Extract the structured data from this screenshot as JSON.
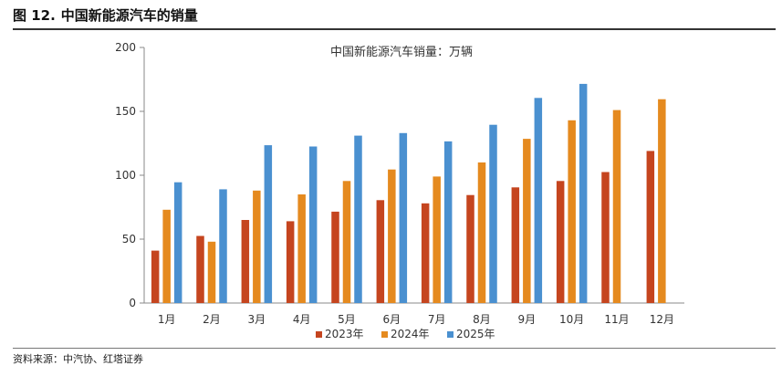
{
  "figure": {
    "number": "图 12.",
    "caption": "中国新能源汽车的销量",
    "source": "资料来源：中汽协、红塔证券"
  },
  "chart_data": {
    "type": "bar",
    "title": "中国新能源汽车销量：万辆",
    "categories": [
      "1月",
      "2月",
      "3月",
      "4月",
      "5月",
      "6月",
      "7月",
      "8月",
      "9月",
      "10月",
      "11月",
      "12月"
    ],
    "series": [
      {
        "name": "2023年",
        "color": "#C5451F",
        "values": [
          41,
          52.5,
          65,
          64,
          71.5,
          80.5,
          78,
          84.5,
          90.5,
          95.5,
          102.5,
          119
        ]
      },
      {
        "name": "2024年",
        "color": "#E58A1F",
        "values": [
          73,
          48,
          88,
          85,
          95.5,
          104.5,
          99,
          110,
          128.5,
          143,
          151,
          159.5
        ]
      },
      {
        "name": "2025年",
        "color": "#4A90D0",
        "values": [
          94.5,
          89,
          123.5,
          122.5,
          131,
          133,
          126.5,
          139.5,
          160.5,
          171.5,
          null,
          null
        ]
      }
    ],
    "ylim": [
      0,
      200
    ],
    "yticks": [
      0,
      50,
      100,
      150,
      200
    ],
    "grid": false,
    "legend": "bottom"
  }
}
